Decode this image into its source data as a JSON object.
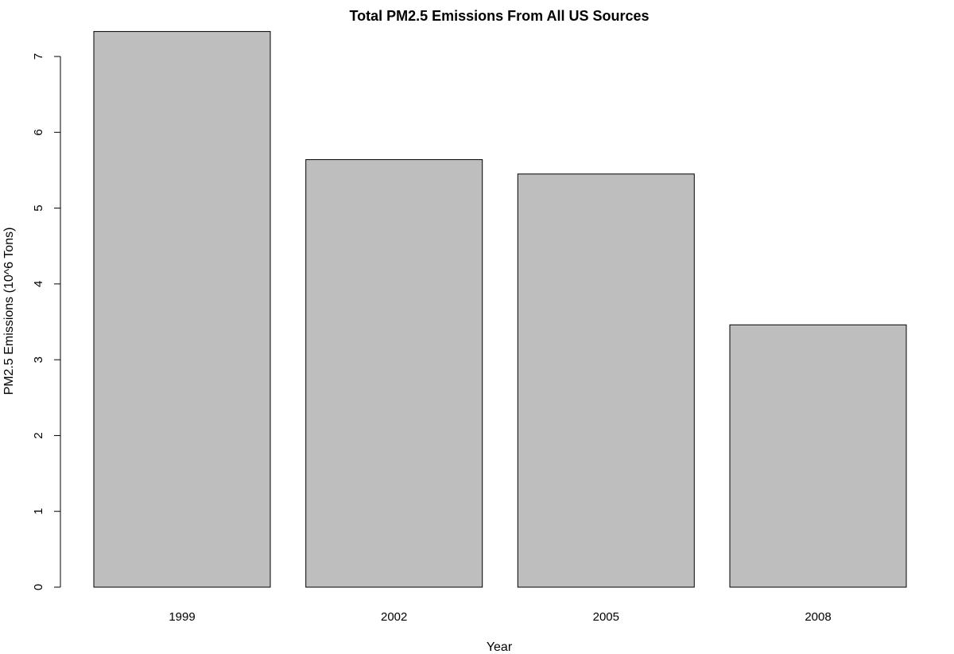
{
  "chart_data": {
    "type": "bar",
    "title": "Total PM2.5 Emissions From All US Sources",
    "xlabel": "Year",
    "ylabel": "PM2.5 Emissions (10^6 Tons)",
    "categories": [
      "1999",
      "2002",
      "2005",
      "2008"
    ],
    "values": [
      7.33,
      5.64,
      5.45,
      3.46
    ],
    "ylim": [
      0,
      7
    ],
    "yticks": [
      0,
      1,
      2,
      3,
      4,
      5,
      6,
      7
    ],
    "grid": false,
    "bar_color": "#bebebe",
    "outline_color": "#000000"
  }
}
